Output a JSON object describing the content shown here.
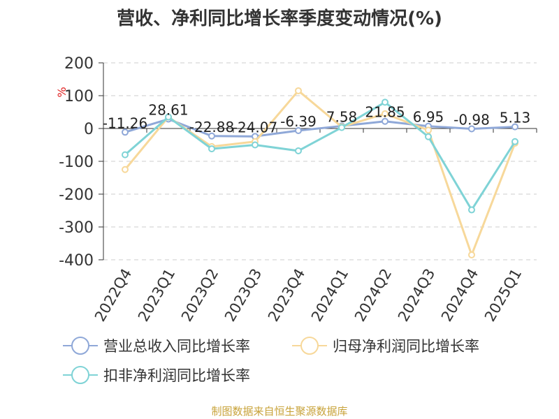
{
  "title": "营收、净利同比增长率季度变动情况(%)",
  "footer": "制图数据来自恒生聚源数据库",
  "chart_data": {
    "type": "line",
    "categories": [
      "2022Q4",
      "2023Q1",
      "2023Q2",
      "2023Q3",
      "2023Q4",
      "2024Q1",
      "2024Q2",
      "2024Q3",
      "2024Q4",
      "2025Q1"
    ],
    "ylim": [
      -400,
      200
    ],
    "yticks": [
      200,
      100,
      0,
      -100,
      -200,
      -300,
      -400
    ],
    "ylabel": "%",
    "grid": true,
    "legend_position": "bottom",
    "series": [
      {
        "name": "营业总收入同比增长率",
        "color": "#8fa8d8",
        "values": [
          -11.26,
          28.61,
          -22.88,
          -24.07,
          -6.39,
          7.58,
          21.85,
          6.95,
          -0.98,
          5.13
        ],
        "labels": [
          "-11.26",
          "28.61",
          "-22.88",
          "-24.07",
          "-6.39",
          "7.58",
          "21.85",
          "6.95",
          "-0.98",
          "5.13"
        ]
      },
      {
        "name": "归母净利润同比增长率",
        "color": "#f7d89a",
        "values": [
          -125,
          35,
          -55,
          -40,
          115,
          5,
          45,
          -5,
          -385,
          -45
        ]
      },
      {
        "name": "扣非净利润同比增长率",
        "color": "#7fd3d6",
        "values": [
          -80,
          35,
          -62,
          -50,
          -68,
          3,
          80,
          -25,
          -248,
          -40
        ]
      }
    ]
  }
}
